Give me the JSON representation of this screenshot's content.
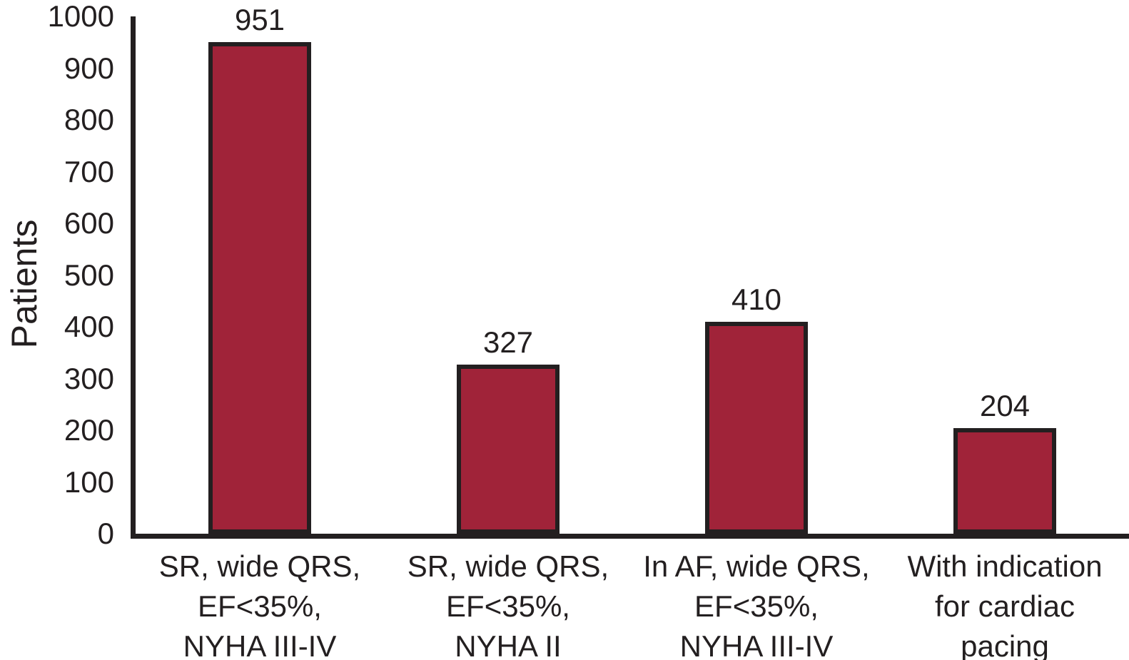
{
  "chart_data": {
    "type": "bar",
    "title": "",
    "ylabel": "Patients",
    "xlabel": "",
    "ylim": [
      0,
      1000
    ],
    "yticks": [
      0,
      100,
      200,
      300,
      400,
      500,
      600,
      700,
      800,
      900,
      1000
    ],
    "categories": [
      "SR, wide QRS, EF<35%, NYHA III-IV",
      "SR, wide QRS, EF<35%, NYHA II",
      "In AF, wide QRS, EF<35%, NYHA III-IV",
      "With indication for cardiac pacing"
    ],
    "category_lines": [
      [
        "SR, wide QRS,",
        "EF<35%,",
        "NYHA III-IV"
      ],
      [
        "SR, wide QRS,",
        "EF<35%,",
        "NYHA II"
      ],
      [
        "In AF, wide QRS,",
        "EF<35%,",
        "NYHA III-IV"
      ],
      [
        "With indication",
        "for cardiac",
        "pacing"
      ]
    ],
    "values": [
      951,
      327,
      410,
      204
    ],
    "grid": false,
    "legend": "none",
    "colors": {
      "bar_fill": "#A02339",
      "bar_border": "#231F20",
      "axis": "#231F20",
      "text": "#231F20",
      "background": "#FFFFFF"
    }
  }
}
